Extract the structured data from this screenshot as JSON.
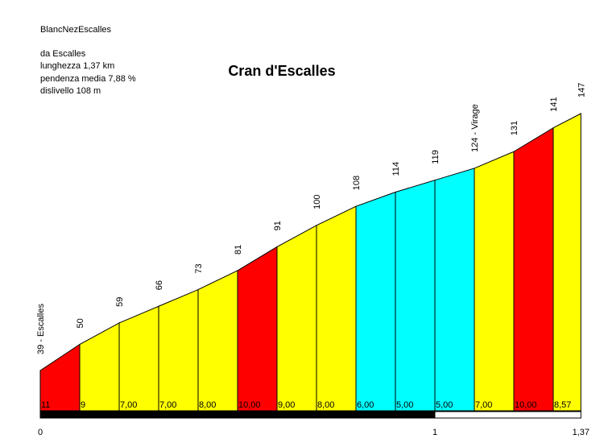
{
  "header": {
    "route": "BlancNezEscalles",
    "from": "da Escalles",
    "length": "lunghezza 1,37 km",
    "avg_grade": "pendenza media 7,88 %",
    "elevation_gain": "dislivello 108 m"
  },
  "chart_data": {
    "type": "area",
    "title": "Cran d'Escalles",
    "x_unit": "km",
    "x_range": [
      0,
      1.37
    ],
    "y_unit": "m",
    "distance_km": [
      0,
      0.1,
      0.2,
      0.3,
      0.4,
      0.5,
      0.6,
      0.7,
      0.8,
      0.9,
      1.0,
      1.1,
      1.2,
      1.3,
      1.37
    ],
    "elevation_m": [
      39,
      50,
      59,
      66,
      73,
      81,
      91,
      100,
      108,
      114,
      119,
      124,
      131,
      141,
      147
    ],
    "elevation_labels": [
      "39 - Escalles",
      "50",
      "59",
      "66",
      "73",
      "81",
      "91",
      "100",
      "108",
      "114",
      "119",
      "124 - Virage",
      "131",
      "141",
      "147"
    ],
    "segment_grades": [
      "11",
      "9",
      "7,00",
      "7,00",
      "8,00",
      "10,00",
      "9,00",
      "8,00",
      "6,00",
      "5,00",
      "5,00",
      "7,00",
      "10,00",
      "8,57"
    ],
    "segment_colors": [
      "#ff0000",
      "#ffff00",
      "#ffff00",
      "#ffff00",
      "#ffff00",
      "#ff0000",
      "#ffff00",
      "#ffff00",
      "#00ffff",
      "#00ffff",
      "#00ffff",
      "#ffff00",
      "#ff0000",
      "#ffff00"
    ],
    "x_tick_labels": [
      {
        "km": 0,
        "label": "0"
      },
      {
        "km": 1,
        "label": "1"
      },
      {
        "km": 1.37,
        "label": "1,37"
      }
    ]
  }
}
